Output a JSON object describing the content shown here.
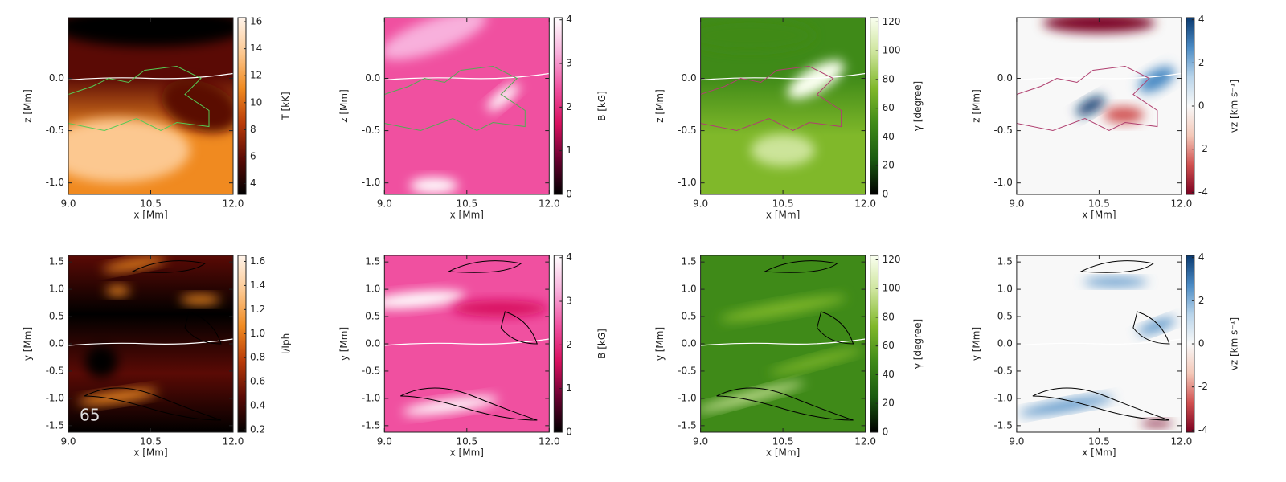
{
  "chart_data": [
    {
      "type": "heatmap",
      "xlabel": "x [Mm]",
      "ylabel": "z [Mm]",
      "xlim": [
        9,
        12
      ],
      "xticks": [
        {
          "value": 9,
          "label": "9.0"
        },
        10.5,
        {
          "value": 12,
          "label": "12.0"
        }
      ],
      "ylim": [
        -1.11,
        0.58
      ],
      "yticks": [
        {
          "value": -1,
          "label": "-1.0"
        },
        -0.5,
        {
          "value": 0,
          "label": "0.0"
        }
      ],
      "colorbar": {
        "label": "T [kK]",
        "lim": [
          3.2,
          16.3
        ],
        "ticks": [
          4,
          6,
          8,
          10,
          12,
          14,
          16
        ],
        "colors": [
          "#000000",
          "#5a0a05",
          "#b83a08",
          "#f08a20",
          "#fcc890",
          "#fff4ea"
        ]
      }
    },
    {
      "type": "heatmap",
      "xlabel": "x [Mm]",
      "ylabel": "z [Mm]",
      "xlim": [
        9,
        12
      ],
      "xticks": [
        {
          "value": 9,
          "label": "9.0"
        },
        10.5,
        {
          "value": 12,
          "label": "12.0"
        }
      ],
      "ylim": [
        -1.11,
        0.58
      ],
      "yticks": [
        {
          "value": -1,
          "label": "-1.0"
        },
        -0.5,
        {
          "value": 0,
          "label": "0.0"
        }
      ],
      "colorbar": {
        "label": "B [kG]",
        "lim": [
          0,
          4.05
        ],
        "ticks": [
          0,
          1,
          2,
          3,
          4
        ],
        "colors": [
          "#000000",
          "#6a0030",
          "#d8105f",
          "#f050a0",
          "#f8b0dc",
          "#ffffff"
        ]
      }
    },
    {
      "type": "heatmap",
      "xlabel": "x [Mm]",
      "ylabel": "z [Mm]",
      "xlim": [
        9,
        12
      ],
      "xticks": [
        {
          "value": 9,
          "label": "9.0"
        },
        10.5,
        {
          "value": 12,
          "label": "12.0"
        }
      ],
      "ylim": [
        -1.11,
        0.58
      ],
      "yticks": [
        {
          "value": -1,
          "label": "-1.0"
        },
        -0.5,
        {
          "value": 0,
          "label": "0.0"
        }
      ],
      "colorbar": {
        "label": "γ [degree]",
        "lim": [
          0,
          123
        ],
        "ticks": [
          0,
          20,
          40,
          60,
          80,
          100,
          120
        ],
        "colors": [
          "#000000",
          "#1a5a10",
          "#3f8a18",
          "#80b82a",
          "#cce49a",
          "#fafff0"
        ]
      }
    },
    {
      "type": "heatmap",
      "xlabel": "x [Mm]",
      "ylabel": "z [Mm]",
      "xlim": [
        9,
        12
      ],
      "xticks": [
        {
          "value": 9,
          "label": "9.0"
        },
        10.5,
        {
          "value": 12,
          "label": "12.0"
        }
      ],
      "ylim": [
        -1.11,
        0.58
      ],
      "yticks": [
        {
          "value": -1,
          "label": "-1.0"
        },
        -0.5,
        {
          "value": 0,
          "label": "0.0"
        }
      ],
      "colorbar": {
        "label": "vz [km s⁻¹]",
        "lim": [
          -4.1,
          4.1
        ],
        "ticks": [
          -4,
          -2,
          0,
          2,
          4
        ],
        "colors": [
          "#7a0020",
          "#d05050",
          "#f4c8b8",
          "#f8f8f8",
          "#b8d4ea",
          "#4a8ac4",
          "#0a3a70"
        ]
      }
    },
    {
      "type": "heatmap",
      "xlabel": "x [Mm]",
      "ylabel": "y [Mm]",
      "xlim": [
        9,
        12
      ],
      "xticks": [
        {
          "value": 9,
          "label": "9.0"
        },
        10.5,
        {
          "value": 12,
          "label": "12.0"
        }
      ],
      "ylim": [
        -1.62,
        1.62
      ],
      "yticks": [
        -1.5,
        {
          "value": -1,
          "label": "-1.0"
        },
        -0.5,
        {
          "value": 0,
          "label": "0.0"
        },
        0.5,
        {
          "value": 1,
          "label": "1.0"
        },
        1.5
      ],
      "colorbar": {
        "label": "I/Iph",
        "lim": [
          0.18,
          1.65
        ],
        "ticks": [
          0.2,
          0.4,
          0.6,
          0.8,
          {
            "value": 1,
            "label": "1.0"
          },
          1.2,
          1.4,
          1.6
        ],
        "colors": [
          "#000000",
          "#5a0a05",
          "#b83a08",
          "#f08a20",
          "#fcc890",
          "#fff4ea"
        ]
      },
      "annotation": "65"
    },
    {
      "type": "heatmap",
      "xlabel": "x [Mm]",
      "ylabel": "y [Mm]",
      "xlim": [
        9,
        12
      ],
      "xticks": [
        {
          "value": 9,
          "label": "9.0"
        },
        10.5,
        {
          "value": 12,
          "label": "12.0"
        }
      ],
      "ylim": [
        -1.62,
        1.62
      ],
      "yticks": [
        -1.5,
        {
          "value": -1,
          "label": "-1.0"
        },
        -0.5,
        {
          "value": 0,
          "label": "0.0"
        },
        0.5,
        {
          "value": 1,
          "label": "1.0"
        },
        1.5
      ],
      "colorbar": {
        "label": "B [kG]",
        "lim": [
          0,
          4.05
        ],
        "ticks": [
          0,
          1,
          2,
          3,
          4
        ],
        "colors": [
          "#000000",
          "#6a0030",
          "#d8105f",
          "#f050a0",
          "#f8b0dc",
          "#ffffff"
        ]
      }
    },
    {
      "type": "heatmap",
      "xlabel": "x [Mm]",
      "ylabel": "y [Mm]",
      "xlim": [
        9,
        12
      ],
      "xticks": [
        {
          "value": 9,
          "label": "9.0"
        },
        10.5,
        {
          "value": 12,
          "label": "12.0"
        }
      ],
      "ylim": [
        -1.62,
        1.62
      ],
      "yticks": [
        -1.5,
        {
          "value": -1,
          "label": "-1.0"
        },
        -0.5,
        {
          "value": 0,
          "label": "0.0"
        },
        0.5,
        {
          "value": 1,
          "label": "1.0"
        },
        1.5
      ],
      "colorbar": {
        "label": "γ [degree]",
        "lim": [
          0,
          123
        ],
        "ticks": [
          0,
          20,
          40,
          60,
          80,
          100,
          120
        ],
        "colors": [
          "#000000",
          "#1a5a10",
          "#3f8a18",
          "#80b82a",
          "#cce49a",
          "#fafff0"
        ]
      }
    },
    {
      "type": "heatmap",
      "xlabel": "x [Mm]",
      "ylabel": "y [Mm]",
      "xlim": [
        9,
        12
      ],
      "xticks": [
        {
          "value": 9,
          "label": "9.0"
        },
        10.5,
        {
          "value": 12,
          "label": "12.0"
        }
      ],
      "ylim": [
        -1.62,
        1.62
      ],
      "yticks": [
        -1.5,
        {
          "value": -1,
          "label": "-1.0"
        },
        -0.5,
        {
          "value": 0,
          "label": "0.0"
        },
        0.5,
        {
          "value": 1,
          "label": "1.0"
        },
        1.5
      ],
      "colorbar": {
        "label": "vz [km s⁻¹]",
        "lim": [
          -4.1,
          4.1
        ],
        "ticks": [
          -4,
          -2,
          0,
          2,
          4
        ],
        "colors": [
          "#7a0020",
          "#d05050",
          "#f4c8b8",
          "#f8f8f8",
          "#b8d4ea",
          "#4a8ac4",
          "#0a3a70"
        ]
      }
    }
  ]
}
